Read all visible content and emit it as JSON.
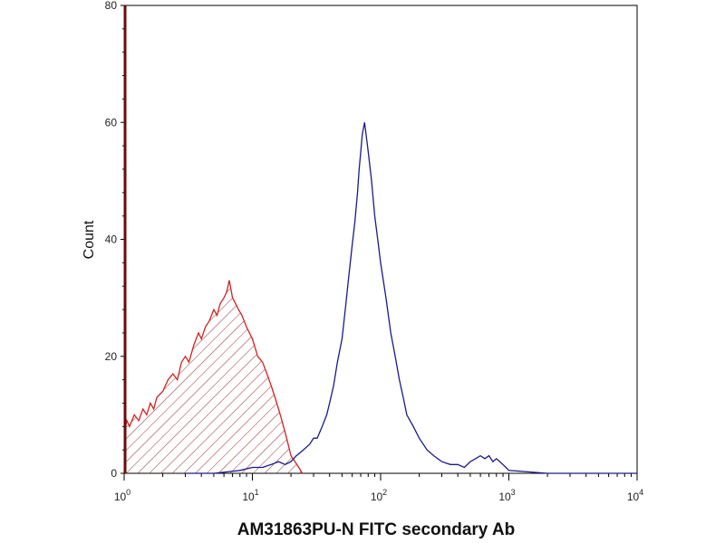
{
  "chart_data": {
    "type": "line",
    "title": "",
    "xlabel": "AM31863PU-N FITC secondary Ab",
    "ylabel": "Count",
    "x_scale": "log",
    "xlim": [
      1,
      10000
    ],
    "ylim": [
      0,
      80
    ],
    "yticks": [
      "0",
      "20",
      "40",
      "60",
      "80"
    ],
    "xticks": [
      {
        "base": "10",
        "exp": "0"
      },
      {
        "base": "10",
        "exp": "1"
      },
      {
        "base": "10",
        "exp": "2"
      },
      {
        "base": "10",
        "exp": "3"
      },
      {
        "base": "10",
        "exp": "4"
      }
    ],
    "grid": false,
    "legend": "none",
    "series": [
      {
        "color": "#d42020",
        "fill": "hatched",
        "x": [
          1.0,
          1.05,
          1.1,
          1.2,
          1.3,
          1.4,
          1.5,
          1.6,
          1.7,
          1.8,
          2.0,
          2.2,
          2.4,
          2.6,
          2.8,
          3.0,
          3.2,
          3.5,
          3.8,
          4.0,
          4.3,
          4.6,
          5.0,
          5.3,
          5.6,
          6.0,
          6.3,
          6.6,
          7.0,
          7.4,
          7.8,
          8.3,
          9.0,
          10.0,
          11.0,
          12.0,
          13.0,
          14.0,
          15.0,
          16.0,
          17.0,
          18.0,
          19.0,
          20.0,
          21.5,
          23.0,
          24.5
        ],
        "y": [
          7,
          9,
          8,
          10,
          9,
          11,
          10,
          12,
          11,
          13,
          14,
          16,
          17,
          16,
          19,
          20,
          19,
          22,
          24,
          23,
          25,
          26,
          28,
          27,
          29,
          30,
          31,
          33,
          30,
          29,
          28,
          27,
          25,
          23,
          20,
          19,
          17,
          15,
          13,
          11,
          9,
          7,
          5,
          3,
          2,
          1,
          0
        ]
      },
      {
        "color": "#1a1a8c",
        "fill": "none",
        "x": [
          3.0,
          5.0,
          8.0,
          10.0,
          12.0,
          14.0,
          16.0,
          18.0,
          20.0,
          22.0,
          25.0,
          28.0,
          30.0,
          32.0,
          35.0,
          38.0,
          40.0,
          43.0,
          46.0,
          50.0,
          53.0,
          56.0,
          60.0,
          63.0,
          66.0,
          68.0,
          70.0,
          72.0,
          75.0,
          78.0,
          80.0,
          85.0,
          90.0,
          95.0,
          100.0,
          110.0,
          120.0,
          130.0,
          140.0,
          150.0,
          160.0,
          180.0,
          200.0,
          230.0,
          260.0,
          300.0,
          350.0,
          400.0,
          450.0,
          500.0,
          550.0,
          600.0,
          650.0,
          700.0,
          750.0,
          800.0,
          850.0,
          900.0,
          950.0,
          1000.0,
          2000.0,
          5000.0,
          10000.0
        ],
        "y": [
          0,
          0,
          0.5,
          1,
          1,
          1.5,
          2,
          1.5,
          2,
          3,
          4,
          5,
          6,
          6,
          8,
          10,
          12,
          15,
          19,
          23,
          28,
          33,
          39,
          43,
          48,
          52,
          55,
          58,
          60,
          57,
          55,
          50,
          44,
          40,
          36,
          30,
          24,
          20,
          16,
          13,
          10,
          8,
          6,
          4,
          3,
          2,
          1.5,
          1.5,
          1,
          2,
          2.5,
          3,
          2.5,
          3,
          2,
          2.5,
          2,
          1.5,
          1,
          0.5,
          0,
          0,
          0
        ]
      }
    ]
  }
}
